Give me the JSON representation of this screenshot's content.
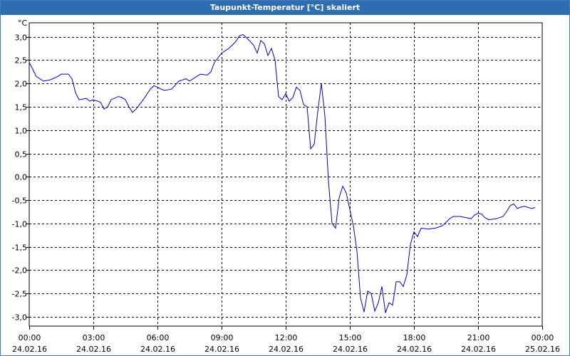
{
  "window": {
    "title": "Taupunkt-Temperatur [°C] skaliert"
  },
  "chart_data": {
    "type": "line",
    "title": "Taupunkt-Temperatur [°C] skaliert",
    "yunit": "°C",
    "ylim": [
      -3.2,
      3.3
    ],
    "xlim_hours": [
      0,
      24
    ],
    "grid": true,
    "y_ticks": [
      "3,0",
      "2,5",
      "2,0",
      "1,5",
      "1,0",
      "0,5",
      "0,0",
      "-0,5",
      "-1,0",
      "-1,5",
      "-2,0",
      "-2,5",
      "-3,0"
    ],
    "y_tick_values": [
      3.0,
      2.5,
      2.0,
      1.5,
      1.0,
      0.5,
      0.0,
      -0.5,
      -1.0,
      -1.5,
      -2.0,
      -2.5,
      -3.0
    ],
    "x_ticks": [
      {
        "time": "00:00",
        "date": "24.02.16"
      },
      {
        "time": "03:00",
        "date": "24.02.16"
      },
      {
        "time": "06:00",
        "date": "24.02.16"
      },
      {
        "time": "09:00",
        "date": "24.02.16"
      },
      {
        "time": "12:00",
        "date": "24.02.16"
      },
      {
        "time": "15:00",
        "date": "24.02.16"
      },
      {
        "time": "18:00",
        "date": "24.02.16"
      },
      {
        "time": "21:00",
        "date": "24.02.16"
      },
      {
        "time": "00:00",
        "date": "25.02.16"
      }
    ],
    "line_color": "#0000cc",
    "series": [
      {
        "points": [
          [
            "24.02.16 00:00",
            2.45
          ],
          [
            "24.02.16 00:10",
            2.3
          ],
          [
            "24.02.16 00:20",
            2.15
          ],
          [
            "24.02.16 00:40",
            2.05
          ],
          [
            "24.02.16 01:00",
            2.08
          ],
          [
            "24.02.16 01:20",
            2.15
          ],
          [
            "24.02.16 01:30",
            2.2
          ],
          [
            "24.02.16 01:50",
            2.2
          ],
          [
            "24.02.16 02:00",
            2.1
          ],
          [
            "24.02.16 02:10",
            1.8
          ],
          [
            "24.02.16 02:20",
            1.65
          ],
          [
            "24.02.16 02:40",
            1.68
          ],
          [
            "24.02.16 02:50",
            1.62
          ],
          [
            "24.02.16 03:00",
            1.65
          ],
          [
            "24.02.16 03:20",
            1.6
          ],
          [
            "24.02.16 03:30",
            1.45
          ],
          [
            "24.02.16 03:40",
            1.5
          ],
          [
            "24.02.16 03:50",
            1.65
          ],
          [
            "24.02.16 04:10",
            1.72
          ],
          [
            "24.02.16 04:20",
            1.7
          ],
          [
            "24.02.16 04:30",
            1.65
          ],
          [
            "24.02.16 04:40",
            1.5
          ],
          [
            "24.02.16 04:50",
            1.38
          ],
          [
            "24.02.16 05:00",
            1.45
          ],
          [
            "24.02.16 05:20",
            1.65
          ],
          [
            "24.02.16 05:40",
            1.88
          ],
          [
            "24.02.16 05:50",
            1.95
          ],
          [
            "24.02.16 06:00",
            1.92
          ],
          [
            "24.02.16 06:10",
            1.88
          ],
          [
            "24.02.16 06:20",
            1.85
          ],
          [
            "24.02.16 06:40",
            1.88
          ],
          [
            "24.02.16 07:00",
            2.05
          ],
          [
            "24.02.16 07:20",
            2.1
          ],
          [
            "24.02.16 07:30",
            2.05
          ],
          [
            "24.02.16 07:50",
            2.15
          ],
          [
            "24.02.16 08:00",
            2.2
          ],
          [
            "24.02.16 08:20",
            2.18
          ],
          [
            "24.02.16 08:30",
            2.25
          ],
          [
            "24.02.16 08:40",
            2.45
          ],
          [
            "24.02.16 09:00",
            2.65
          ],
          [
            "24.02.16 09:20",
            2.75
          ],
          [
            "24.02.16 09:30",
            2.82
          ],
          [
            "24.02.16 09:40",
            2.9
          ],
          [
            "24.02.16 09:50",
            3.02
          ],
          [
            "24.02.16 10:00",
            3.05
          ],
          [
            "24.02.16 10:10",
            2.98
          ],
          [
            "24.02.16 10:20",
            2.9
          ],
          [
            "24.02.16 10:30",
            2.82
          ],
          [
            "24.02.16 10:40",
            2.65
          ],
          [
            "24.02.16 10:50",
            2.92
          ],
          [
            "24.02.16 11:00",
            2.85
          ],
          [
            "24.02.16 11:10",
            2.6
          ],
          [
            "24.02.16 11:20",
            2.75
          ],
          [
            "24.02.16 11:30",
            2.5
          ],
          [
            "24.02.16 11:40",
            1.72
          ],
          [
            "24.02.16 11:50",
            1.65
          ],
          [
            "24.02.16 12:00",
            1.78
          ],
          [
            "24.02.16 12:10",
            1.62
          ],
          [
            "24.02.16 12:20",
            1.7
          ],
          [
            "24.02.16 12:30",
            1.92
          ],
          [
            "24.02.16 12:40",
            1.85
          ],
          [
            "24.02.16 12:50",
            1.55
          ],
          [
            "24.02.16 13:00",
            1.5
          ],
          [
            "24.02.16 13:10",
            0.6
          ],
          [
            "24.02.16 13:20",
            0.7
          ],
          [
            "24.02.16 13:30",
            1.4
          ],
          [
            "24.02.16 13:40",
            2.0
          ],
          [
            "24.02.16 13:50",
            1.3
          ],
          [
            "24.02.16 14:00",
            -0.1
          ],
          [
            "24.02.16 14:10",
            -1.0
          ],
          [
            "24.02.16 14:20",
            -1.1
          ],
          [
            "24.02.16 14:30",
            -0.45
          ],
          [
            "24.02.16 14:40",
            -0.2
          ],
          [
            "24.02.16 14:50",
            -0.35
          ],
          [
            "24.02.16 15:00",
            -0.7
          ],
          [
            "24.02.16 15:10",
            -1.05
          ],
          [
            "24.02.16 15:20",
            -1.6
          ],
          [
            "24.02.16 15:30",
            -2.6
          ],
          [
            "24.02.16 15:40",
            -2.9
          ],
          [
            "24.02.16 15:50",
            -2.45
          ],
          [
            "24.02.16 16:00",
            -2.5
          ],
          [
            "24.02.16 16:10",
            -2.88
          ],
          [
            "24.02.16 16:20",
            -2.7
          ],
          [
            "24.02.16 16:30",
            -2.35
          ],
          [
            "24.02.16 16:40",
            -2.92
          ],
          [
            "24.02.16 16:50",
            -2.7
          ],
          [
            "24.02.16 17:00",
            -2.75
          ],
          [
            "24.02.16 17:10",
            -2.25
          ],
          [
            "24.02.16 17:20",
            -2.25
          ],
          [
            "24.02.16 17:30",
            -2.35
          ],
          [
            "24.02.16 17:40",
            -2.1
          ],
          [
            "24.02.16 17:50",
            -1.45
          ],
          [
            "24.02.16 18:00",
            -1.18
          ],
          [
            "24.02.16 18:10",
            -1.28
          ],
          [
            "24.02.16 18:20",
            -1.1
          ],
          [
            "24.02.16 18:40",
            -1.12
          ],
          [
            "24.02.16 19:00",
            -1.1
          ],
          [
            "24.02.16 19:20",
            -1.05
          ],
          [
            "24.02.16 19:40",
            -0.9
          ],
          [
            "24.02.16 19:50",
            -0.85
          ],
          [
            "24.02.16 20:10",
            -0.85
          ],
          [
            "24.02.16 20:30",
            -0.88
          ],
          [
            "24.02.16 20:40",
            -0.9
          ],
          [
            "24.02.16 20:50",
            -0.82
          ],
          [
            "24.02.16 21:00",
            -0.78
          ],
          [
            "24.02.16 21:10",
            -0.8
          ],
          [
            "24.02.16 21:20",
            -0.88
          ],
          [
            "24.02.16 21:30",
            -0.92
          ],
          [
            "24.02.16 21:50",
            -0.9
          ],
          [
            "24.02.16 22:10",
            -0.85
          ],
          [
            "24.02.16 22:20",
            -0.75
          ],
          [
            "24.02.16 22:30",
            -0.62
          ],
          [
            "24.02.16 22:40",
            -0.58
          ],
          [
            "24.02.16 22:50",
            -0.68
          ],
          [
            "24.02.16 23:00",
            -0.65
          ],
          [
            "24.02.16 23:10",
            -0.63
          ],
          [
            "24.02.16 23:30",
            -0.68
          ],
          [
            "24.02.16 23:40",
            -0.66
          ]
        ]
      }
    ]
  }
}
